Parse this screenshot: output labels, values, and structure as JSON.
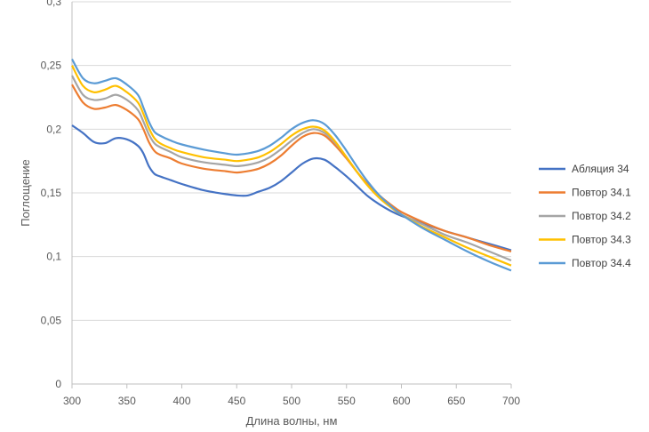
{
  "chart_data": {
    "type": "line",
    "title": "",
    "xlabel": "Длина волны, нм",
    "ylabel": "Поглощение",
    "xlim": [
      300,
      700
    ],
    "ylim": [
      0,
      0.3
    ],
    "x_ticks": [
      "300",
      "350",
      "400",
      "450",
      "500",
      "550",
      "600",
      "650",
      "700"
    ],
    "y_ticks": [
      "0",
      "0,05",
      "0,1",
      "0,15",
      "0,2",
      "0,25",
      "0,3"
    ],
    "grid": "horizontal",
    "legend_position": "right",
    "x": [
      300,
      310,
      320,
      330,
      340,
      350,
      360,
      365,
      370,
      375,
      380,
      390,
      400,
      420,
      440,
      450,
      460,
      470,
      480,
      490,
      500,
      510,
      520,
      530,
      540,
      550,
      560,
      570,
      580,
      590,
      600,
      620,
      640,
      660,
      680,
      700
    ],
    "series": [
      {
        "name": "Абляция 34",
        "color": "#4472C4",
        "values": [
          0.203,
          0.197,
          0.19,
          0.189,
          0.193,
          0.192,
          0.187,
          0.181,
          0.171,
          0.165,
          0.163,
          0.16,
          0.157,
          0.152,
          0.149,
          0.148,
          0.148,
          0.151,
          0.154,
          0.159,
          0.166,
          0.173,
          0.177,
          0.176,
          0.17,
          0.163,
          0.155,
          0.147,
          0.141,
          0.136,
          0.132,
          0.126,
          0.12,
          0.115,
          0.11,
          0.105
        ]
      },
      {
        "name": "Повтор 34.1",
        "color": "#ED7D31",
        "values": [
          0.235,
          0.221,
          0.216,
          0.217,
          0.219,
          0.215,
          0.208,
          0.2,
          0.19,
          0.183,
          0.18,
          0.177,
          0.173,
          0.169,
          0.167,
          0.166,
          0.167,
          0.169,
          0.173,
          0.179,
          0.187,
          0.194,
          0.197,
          0.195,
          0.187,
          0.177,
          0.166,
          0.156,
          0.148,
          0.141,
          0.135,
          0.127,
          0.12,
          0.115,
          0.109,
          0.104
        ]
      },
      {
        "name": "Повтор 34.2",
        "color": "#A5A5A5",
        "values": [
          0.242,
          0.227,
          0.223,
          0.224,
          0.227,
          0.223,
          0.215,
          0.206,
          0.196,
          0.189,
          0.186,
          0.182,
          0.178,
          0.174,
          0.172,
          0.171,
          0.172,
          0.174,
          0.178,
          0.184,
          0.191,
          0.197,
          0.2,
          0.197,
          0.189,
          0.178,
          0.166,
          0.155,
          0.146,
          0.139,
          0.133,
          0.125,
          0.117,
          0.111,
          0.104,
          0.097
        ]
      },
      {
        "name": "Повтор 34.3",
        "color": "#FFC000",
        "values": [
          0.25,
          0.234,
          0.229,
          0.231,
          0.234,
          0.229,
          0.221,
          0.212,
          0.201,
          0.193,
          0.189,
          0.185,
          0.182,
          0.178,
          0.176,
          0.175,
          0.176,
          0.178,
          0.182,
          0.188,
          0.195,
          0.2,
          0.202,
          0.199,
          0.19,
          0.178,
          0.166,
          0.155,
          0.146,
          0.139,
          0.133,
          0.123,
          0.115,
          0.107,
          0.1,
          0.093
        ]
      },
      {
        "name": "Повтор 34.4",
        "color": "#5B9BD5",
        "values": [
          0.255,
          0.24,
          0.236,
          0.238,
          0.24,
          0.235,
          0.227,
          0.217,
          0.206,
          0.198,
          0.195,
          0.191,
          0.188,
          0.184,
          0.181,
          0.18,
          0.181,
          0.183,
          0.187,
          0.193,
          0.2,
          0.205,
          0.207,
          0.204,
          0.195,
          0.183,
          0.17,
          0.158,
          0.148,
          0.14,
          0.133,
          0.122,
          0.113,
          0.104,
          0.096,
          0.089
        ]
      }
    ]
  }
}
